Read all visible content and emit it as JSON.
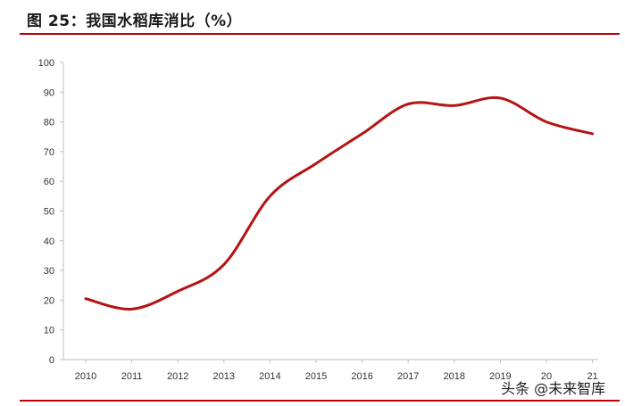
{
  "title": "图 25：我国水稻库消比（%）",
  "watermark": "头条 @未来智库",
  "colors": {
    "accent": "#c00000",
    "line": "#b41414",
    "axis": "#bfbfbf"
  },
  "chart_data": {
    "type": "line",
    "title": "",
    "xlabel": "",
    "ylabel": "",
    "x": [
      "2010",
      "2011",
      "2012",
      "2013",
      "2014",
      "2015",
      "2016",
      "2017",
      "2018",
      "2019",
      "2020",
      "2021"
    ],
    "ylim": [
      0,
      100
    ],
    "yticks": [
      0,
      10,
      20,
      30,
      40,
      50,
      60,
      70,
      80,
      90,
      100
    ],
    "xtick_labels": [
      "2010",
      "2011",
      "2012",
      "2013",
      "2014",
      "2015",
      "2016",
      "2017",
      "2018",
      "2019",
      "20",
      "21"
    ],
    "grid": false,
    "legend": "none",
    "series": [
      {
        "values": [
          20.5,
          17,
          23,
          32,
          55,
          66,
          76,
          86,
          85.5,
          88,
          80,
          76
        ]
      }
    ]
  }
}
